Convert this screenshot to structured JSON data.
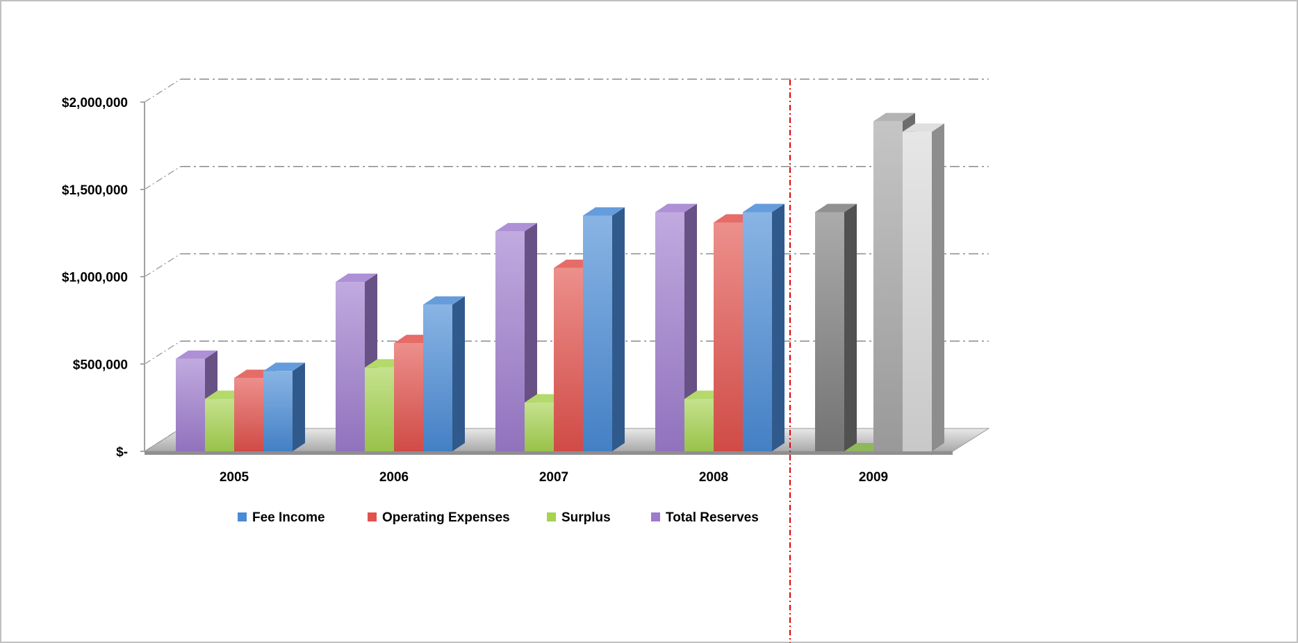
{
  "chart_data": {
    "type": "bar",
    "style": "3d-clustered-column",
    "categories": [
      "2005",
      "2006",
      "2007",
      "2008",
      "2009"
    ],
    "series": [
      {
        "name": "Total Reserves",
        "color": "#9e7ccd",
        "values": [
          530000,
          970000,
          1260000,
          1370000,
          1370000
        ],
        "colors_override": {
          "2009": "#7d7d7d"
        }
      },
      {
        "name": "Surplus",
        "color": "#a6d350",
        "values": [
          300000,
          480000,
          280000,
          300000,
          0
        ],
        "colors_override": {
          "2009": "#8fb85a"
        }
      },
      {
        "name": "Operating Expenses",
        "color": "#e2524d",
        "values": [
          420000,
          620000,
          1050000,
          1310000,
          1890000
        ],
        "colors_override": {
          "2009": "#a6a6a6"
        }
      },
      {
        "name": "Fee Income",
        "color": "#4a8bd6",
        "values": [
          460000,
          840000,
          1350000,
          1370000,
          1830000
        ],
        "colors_override": {
          "2009": "#d9d9d9"
        }
      }
    ],
    "ylim": [
      0,
      2000000
    ],
    "yticks": [
      {
        "value": 0,
        "label": "$-"
      },
      {
        "value": 500000,
        "label": "$500,000"
      },
      {
        "value": 1000000,
        "label": "$1,000,000"
      },
      {
        "value": 1500000,
        "label": "$1,500,000"
      },
      {
        "value": 2000000,
        "label": "$2,000,000"
      }
    ],
    "legend": {
      "placement": "bottom",
      "entries": [
        {
          "name": "Fee Income",
          "color": "#4a8bd6"
        },
        {
          "name": "Operating Expenses",
          "color": "#e2524d"
        },
        {
          "name": "Surplus",
          "color": "#a6d350"
        },
        {
          "name": "Total Reserves",
          "color": "#9e7ccd"
        }
      ]
    },
    "grid": true,
    "grid_style": "dash-dot",
    "annotations": [
      {
        "type": "vertical-dashed-line",
        "between": [
          "2008",
          "2009"
        ],
        "color": "#e00000"
      }
    ],
    "title": "",
    "xlabel": "",
    "ylabel": ""
  }
}
